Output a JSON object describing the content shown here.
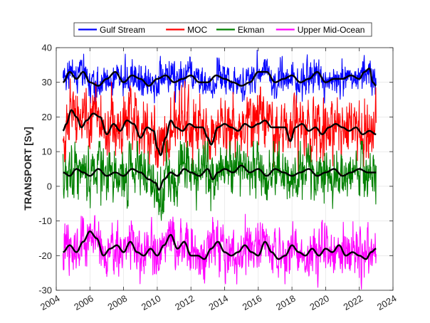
{
  "chart_data": {
    "type": "line",
    "title": "",
    "xlabel": "",
    "ylabel": "TRANSPORT [Sv]",
    "xlim": [
      2004,
      2024
    ],
    "ylim": [
      -30,
      40
    ],
    "xticks": [
      2004,
      2006,
      2008,
      2010,
      2012,
      2014,
      2016,
      2018,
      2020,
      2022,
      2024
    ],
    "yticks": [
      -30,
      -20,
      -10,
      0,
      10,
      20,
      30,
      40
    ],
    "grid": true,
    "legend": {
      "placement": "top, outside, horizontal"
    },
    "x_range_of_data": [
      2004.4,
      2023.0
    ],
    "smoothed_curve_color": "#000000",
    "series": [
      {
        "name": "Gulf Stream",
        "color": "#0000ff",
        "mean": 31.5,
        "typical_range": [
          26,
          39
        ],
        "smoothed": [
          [
            2004.4,
            30
          ],
          [
            2004.8,
            33
          ],
          [
            2005.2,
            31
          ],
          [
            2005.6,
            33
          ],
          [
            2006.0,
            30
          ],
          [
            2006.5,
            29
          ],
          [
            2007.0,
            31
          ],
          [
            2007.5,
            33
          ],
          [
            2008.0,
            30
          ],
          [
            2008.5,
            32
          ],
          [
            2009.0,
            31
          ],
          [
            2009.5,
            29
          ],
          [
            2010.0,
            31
          ],
          [
            2010.5,
            32
          ],
          [
            2011.0,
            30
          ],
          [
            2011.5,
            31
          ],
          [
            2012.0,
            32
          ],
          [
            2012.5,
            30
          ],
          [
            2013.0,
            30
          ],
          [
            2013.5,
            32
          ],
          [
            2014.0,
            31
          ],
          [
            2014.5,
            30
          ],
          [
            2015.0,
            29
          ],
          [
            2015.5,
            30
          ],
          [
            2016.0,
            33
          ],
          [
            2016.5,
            33
          ],
          [
            2017.0,
            30
          ],
          [
            2017.5,
            31
          ],
          [
            2018.0,
            32
          ],
          [
            2018.5,
            30
          ],
          [
            2019.0,
            31
          ],
          [
            2019.5,
            33
          ],
          [
            2020.0,
            30
          ],
          [
            2020.5,
            31
          ],
          [
            2021.0,
            31
          ],
          [
            2021.5,
            32
          ],
          [
            2022.0,
            31
          ],
          [
            2022.3,
            33
          ],
          [
            2022.6,
            34
          ],
          [
            2022.8,
            30
          ],
          [
            2023.0,
            29
          ]
        ]
      },
      {
        "name": "MOC",
        "color": "#ff0000",
        "mean": 17.5,
        "typical_range": [
          5,
          30
        ],
        "smoothed": [
          [
            2004.4,
            16
          ],
          [
            2004.6,
            18
          ],
          [
            2004.9,
            22
          ],
          [
            2005.2,
            20
          ],
          [
            2005.5,
            17
          ],
          [
            2005.8,
            19
          ],
          [
            2006.2,
            21
          ],
          [
            2006.6,
            20
          ],
          [
            2007.0,
            15
          ],
          [
            2007.4,
            18
          ],
          [
            2007.8,
            16
          ],
          [
            2008.2,
            19
          ],
          [
            2008.6,
            18
          ],
          [
            2009.0,
            14
          ],
          [
            2009.4,
            17
          ],
          [
            2009.8,
            16
          ],
          [
            2010.0,
            11
          ],
          [
            2010.2,
            9
          ],
          [
            2010.5,
            14
          ],
          [
            2010.8,
            19
          ],
          [
            2011.1,
            17
          ],
          [
            2011.5,
            16
          ],
          [
            2011.9,
            18
          ],
          [
            2012.3,
            17
          ],
          [
            2012.7,
            17
          ],
          [
            2013.0,
            14
          ],
          [
            2013.2,
            12
          ],
          [
            2013.6,
            17
          ],
          [
            2014.0,
            18
          ],
          [
            2014.4,
            17
          ],
          [
            2014.8,
            16
          ],
          [
            2015.2,
            18
          ],
          [
            2015.6,
            17
          ],
          [
            2016.0,
            18
          ],
          [
            2016.4,
            19
          ],
          [
            2016.8,
            17
          ],
          [
            2017.2,
            17
          ],
          [
            2017.6,
            17
          ],
          [
            2017.9,
            13
          ],
          [
            2018.2,
            17
          ],
          [
            2018.6,
            18
          ],
          [
            2019.0,
            16
          ],
          [
            2019.4,
            17
          ],
          [
            2019.8,
            15
          ],
          [
            2020.2,
            17
          ],
          [
            2020.6,
            18
          ],
          [
            2021.0,
            17
          ],
          [
            2021.4,
            16
          ],
          [
            2021.8,
            17
          ],
          [
            2022.2,
            15
          ],
          [
            2022.6,
            16
          ],
          [
            2023.0,
            15
          ]
        ]
      },
      {
        "name": "Ekman",
        "color": "#008000",
        "mean": 3.5,
        "typical_range": [
          -10,
          12
        ],
        "smoothed": [
          [
            2004.4,
            4
          ],
          [
            2004.8,
            3
          ],
          [
            2005.2,
            5
          ],
          [
            2005.6,
            4
          ],
          [
            2006.0,
            3
          ],
          [
            2006.5,
            5
          ],
          [
            2007.0,
            3
          ],
          [
            2007.5,
            4
          ],
          [
            2008.0,
            3
          ],
          [
            2008.5,
            5
          ],
          [
            2009.0,
            4
          ],
          [
            2009.5,
            2
          ],
          [
            2009.9,
            1
          ],
          [
            2010.1,
            -1
          ],
          [
            2010.4,
            2
          ],
          [
            2010.8,
            4
          ],
          [
            2011.2,
            3
          ],
          [
            2011.6,
            5
          ],
          [
            2012.0,
            4
          ],
          [
            2012.5,
            3
          ],
          [
            2013.0,
            5
          ],
          [
            2013.3,
            2
          ],
          [
            2013.6,
            4
          ],
          [
            2014.0,
            5
          ],
          [
            2014.5,
            4
          ],
          [
            2015.0,
            6
          ],
          [
            2015.5,
            4
          ],
          [
            2016.0,
            5
          ],
          [
            2016.5,
            3
          ],
          [
            2017.0,
            5
          ],
          [
            2017.5,
            4
          ],
          [
            2018.0,
            3
          ],
          [
            2018.5,
            4
          ],
          [
            2019.0,
            5
          ],
          [
            2019.5,
            3
          ],
          [
            2020.0,
            4
          ],
          [
            2020.5,
            5
          ],
          [
            2021.0,
            3
          ],
          [
            2021.5,
            4
          ],
          [
            2022.0,
            5
          ],
          [
            2022.5,
            4
          ],
          [
            2023.0,
            4
          ]
        ]
      },
      {
        "name": "Upper Mid-Ocean",
        "color": "#ff00ff",
        "mean": -18.5,
        "typical_range": [
          -28,
          -8
        ],
        "smoothed": [
          [
            2004.4,
            -19
          ],
          [
            2004.8,
            -17
          ],
          [
            2005.2,
            -19
          ],
          [
            2005.6,
            -16
          ],
          [
            2006.0,
            -13
          ],
          [
            2006.4,
            -15
          ],
          [
            2006.8,
            -20
          ],
          [
            2007.2,
            -18
          ],
          [
            2007.6,
            -17
          ],
          [
            2008.0,
            -19
          ],
          [
            2008.4,
            -16
          ],
          [
            2008.8,
            -19
          ],
          [
            2009.2,
            -20
          ],
          [
            2009.6,
            -18
          ],
          [
            2010.0,
            -20
          ],
          [
            2010.4,
            -17
          ],
          [
            2010.8,
            -14
          ],
          [
            2011.2,
            -18
          ],
          [
            2011.6,
            -16
          ],
          [
            2012.0,
            -20
          ],
          [
            2012.4,
            -20
          ],
          [
            2012.8,
            -21
          ],
          [
            2013.2,
            -18
          ],
          [
            2013.6,
            -16
          ],
          [
            2014.0,
            -19
          ],
          [
            2014.4,
            -20
          ],
          [
            2014.8,
            -19
          ],
          [
            2015.2,
            -17
          ],
          [
            2015.6,
            -19
          ],
          [
            2016.0,
            -20
          ],
          [
            2016.4,
            -16
          ],
          [
            2016.8,
            -19
          ],
          [
            2017.2,
            -21
          ],
          [
            2017.6,
            -20
          ],
          [
            2018.0,
            -17
          ],
          [
            2018.4,
            -19
          ],
          [
            2018.8,
            -20
          ],
          [
            2019.2,
            -18
          ],
          [
            2019.6,
            -20
          ],
          [
            2020.0,
            -18
          ],
          [
            2020.4,
            -19
          ],
          [
            2020.8,
            -17
          ],
          [
            2021.2,
            -20
          ],
          [
            2021.6,
            -19
          ],
          [
            2022.0,
            -20
          ],
          [
            2022.4,
            -21
          ],
          [
            2022.7,
            -19
          ],
          [
            2023.0,
            -18
          ]
        ]
      }
    ]
  }
}
